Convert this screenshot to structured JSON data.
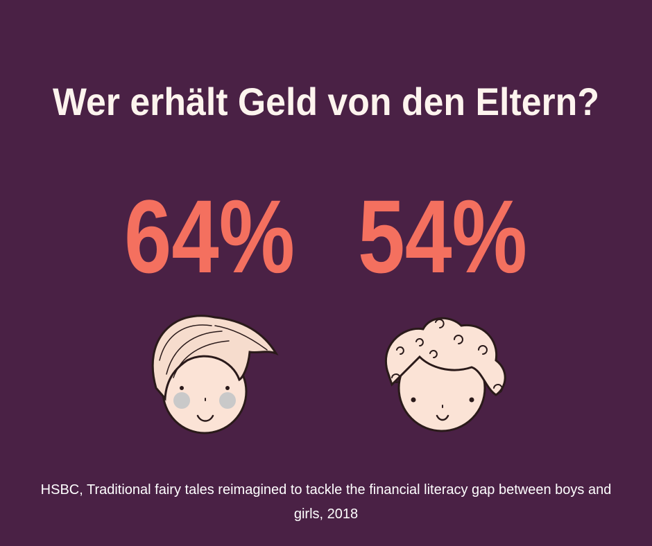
{
  "title": "Wer erhält Geld von den Eltern?",
  "stats": [
    {
      "value": "64%"
    },
    {
      "value": "54%"
    }
  ],
  "source": "HSBC, Traditional fairy tales reimagined to tackle the financial literacy gap between boys and girls, 2018"
}
